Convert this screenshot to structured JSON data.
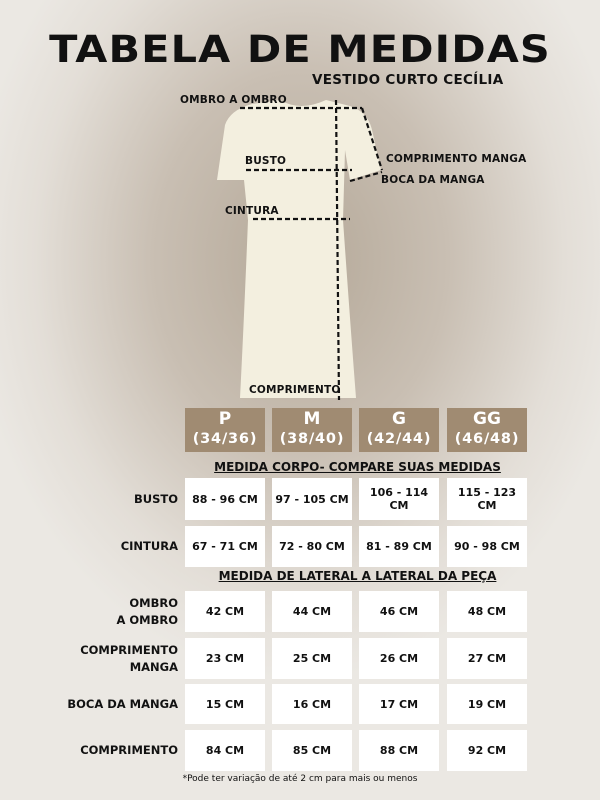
{
  "title": "TABELA DE MEDIDAS",
  "subtitle": "VESTIDO CURTO CECÍLIA",
  "diagram_labels": {
    "ombro": "OMBRO A OMBRO",
    "busto": "BUSTO",
    "cintura": "CINTURA",
    "comp_manga": "COMPRIMENTO MANGA",
    "boca_manga": "BOCA DA MANGA",
    "comprimento": "COMPRIMENTO"
  },
  "sizes": [
    {
      "size": "P",
      "range": "(34/36)"
    },
    {
      "size": "M",
      "range": "(38/40)"
    },
    {
      "size": "G",
      "range": "(42/44)"
    },
    {
      "size": "GG",
      "range": "(46/48)"
    }
  ],
  "section1": "MEDIDA CORPO- COMPARE SUAS MEDIDAS",
  "body_rows": [
    {
      "label": "BUSTO",
      "values": [
        "88 - 96 CM",
        "97 - 105 CM",
        "106 - 114 CM",
        "115 - 123 CM"
      ]
    },
    {
      "label": "CINTURA",
      "values": [
        "67 - 71 CM",
        "72 - 80 CM",
        "81 - 89 CM",
        "90 - 98 CM"
      ]
    }
  ],
  "section2": "MEDIDA  DE LATERAL A LATERAL DA PEÇA",
  "garment_rows": [
    {
      "label": "OMBRO\nA OMBRO",
      "values": [
        "42 CM",
        "44 CM",
        "46 CM",
        "48 CM"
      ]
    },
    {
      "label": "COMPRIMENTO\nMANGA",
      "values": [
        "23 CM",
        "25 CM",
        "26 CM",
        "27 CM"
      ]
    },
    {
      "label": "BOCA DA MANGA",
      "values": [
        "15 CM",
        "16 CM",
        "17 CM",
        "19 CM"
      ]
    },
    {
      "label": "COMPRIMENTO",
      "values": [
        "84 CM",
        "85 CM",
        "88 CM",
        "92 CM"
      ]
    }
  ],
  "footnote": "*Pode ter variação de até 2 cm para mais ou menos",
  "colors": {
    "header": "#a08b72",
    "dress": "#f3efdf"
  }
}
